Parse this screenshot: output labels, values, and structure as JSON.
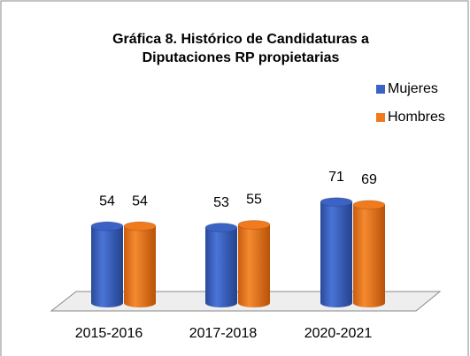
{
  "chart_data": {
    "type": "bar",
    "title": [
      "Gráfica 8. Histórico de Candidaturas a",
      "Diputaciones RP propietarias"
    ],
    "categories": [
      "2015-2016",
      "2017-2018",
      "2020-2021"
    ],
    "series": [
      {
        "name": "Mujeres",
        "color": "#3b63c4",
        "values": [
          54,
          53,
          71
        ]
      },
      {
        "name": "Hombres",
        "color": "#f07a1e",
        "values": [
          54,
          55,
          69
        ]
      }
    ],
    "legend": "right"
  }
}
